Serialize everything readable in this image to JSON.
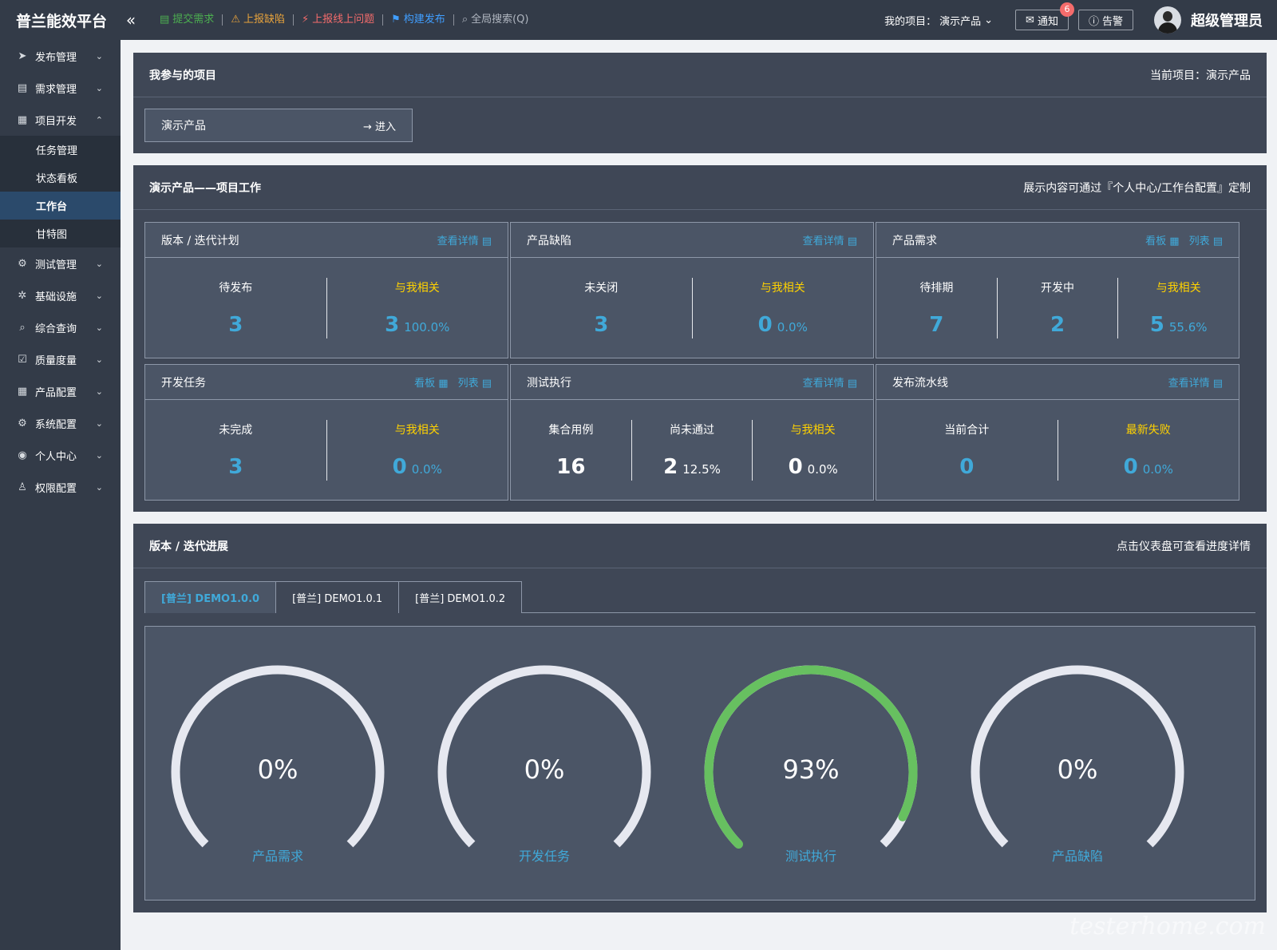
{
  "header": {
    "brand": "普兰能效平台",
    "collapse_icon": "«",
    "quick_links": [
      {
        "label": "提交需求",
        "icon": "▤",
        "color": "green"
      },
      {
        "label": "上报缺陷",
        "icon": "⚠",
        "color": "orange"
      },
      {
        "label": "上报线上问题",
        "icon": "⚡",
        "color": "red"
      },
      {
        "label": "构建发布",
        "icon": "⚑",
        "color": "blue"
      },
      {
        "label": "全局搜索(Q)",
        "icon": "⌕",
        "color": "gray"
      }
    ],
    "my_project_label": "我的项目：",
    "my_project_value": "演示产品",
    "notify_label": "通知",
    "notify_count": "6",
    "alarm_label": "告警",
    "username": "超级管理员"
  },
  "sidebar": {
    "items": [
      {
        "label": "发布管理",
        "icon": "➤",
        "chev": "⌄"
      },
      {
        "label": "需求管理",
        "icon": "▤",
        "chev": "⌄"
      },
      {
        "label": "项目开发",
        "icon": "▦",
        "chev": "⌃"
      },
      {
        "label": "任务管理"
      },
      {
        "label": "状态看板"
      },
      {
        "label": "工作台"
      },
      {
        "label": "甘特图"
      },
      {
        "label": "测试管理",
        "icon": "⚙",
        "chev": "⌄"
      },
      {
        "label": "基础设施",
        "icon": "✲",
        "chev": "⌄"
      },
      {
        "label": "综合查询",
        "icon": "⌕",
        "chev": "⌄"
      },
      {
        "label": "质量度量",
        "icon": "☑",
        "chev": "⌄"
      },
      {
        "label": "产品配置",
        "icon": "▦",
        "chev": "⌄"
      },
      {
        "label": "系统配置",
        "icon": "⚙",
        "chev": "⌄"
      },
      {
        "label": "个人中心",
        "icon": "◉",
        "chev": "⌄"
      },
      {
        "label": "权限配置",
        "icon": "♙",
        "chev": "⌄"
      }
    ]
  },
  "my_projects": {
    "title": "我参与的项目",
    "current": "当前项目：演示产品",
    "project_name": "演示产品",
    "enter_label": "→ 进入"
  },
  "work": {
    "title": "演示产品——项目工作",
    "hint": "展示内容可通过『个人中心/工作台配置』定制",
    "release_plan": {
      "title": "版本 / 迭代计划",
      "link": "查看详情 ▤",
      "c1_label": "待发布",
      "c1_value": "3",
      "c2_label": "与我相关",
      "c2_value": "3",
      "c2_pct": "100.0%"
    },
    "defects": {
      "title": "产品缺陷",
      "link": "查看详情 ▤",
      "c1_label": "未关闭",
      "c1_value": "3",
      "c2_label": "与我相关",
      "c2_value": "0",
      "c2_pct": "0.0%"
    },
    "requirements": {
      "title": "产品需求",
      "link1": "看板 ▦",
      "link2": "列表 ▤",
      "c1_label": "待排期",
      "c1_value": "7",
      "c2_label": "开发中",
      "c2_value": "2",
      "c3_label": "与我相关",
      "c3_value": "5",
      "c3_pct": "55.6%"
    },
    "dev_tasks": {
      "title": "开发任务",
      "link1": "看板 ▦",
      "link2": "列表 ▤",
      "c1_label": "未完成",
      "c1_value": "3",
      "c2_label": "与我相关",
      "c2_value": "0",
      "c2_pct": "0.0%"
    },
    "test_exec": {
      "title": "测试执行",
      "link": "查看详情 ▤",
      "c1_label": "集合用例",
      "c1_value": "16",
      "c2_label": "尚未通过",
      "c2_value": "2",
      "c2_pct": "12.5%",
      "c3_label": "与我相关",
      "c3_value": "0",
      "c3_pct": "0.0%"
    },
    "pipeline": {
      "title": "发布流水线",
      "link": "查看详情 ▤",
      "c1_label": "当前合计",
      "c1_value": "0",
      "c2_label": "最新失败",
      "c2_value": "0",
      "c2_pct": "0.0%"
    }
  },
  "progress": {
    "title": "版本 / 迭代进展",
    "hint": "点击仪表盘可查看进度详情",
    "tabs": [
      "[普兰] DEMO1.0.0",
      "[普兰] DEMO1.0.1",
      "[普兰] DEMO1.0.2"
    ],
    "gauges": [
      {
        "label": "产品需求",
        "text": "0%",
        "value": 0
      },
      {
        "label": "开发任务",
        "text": "0%",
        "value": 0
      },
      {
        "label": "测试执行",
        "text": "93%",
        "value": 0.93
      },
      {
        "label": "产品缺陷",
        "text": "0%",
        "value": 0
      }
    ],
    "gauge_track_color": "#e6e8f0",
    "gauge_fill_color": "#67c060"
  },
  "watermark": "testerhome.com"
}
